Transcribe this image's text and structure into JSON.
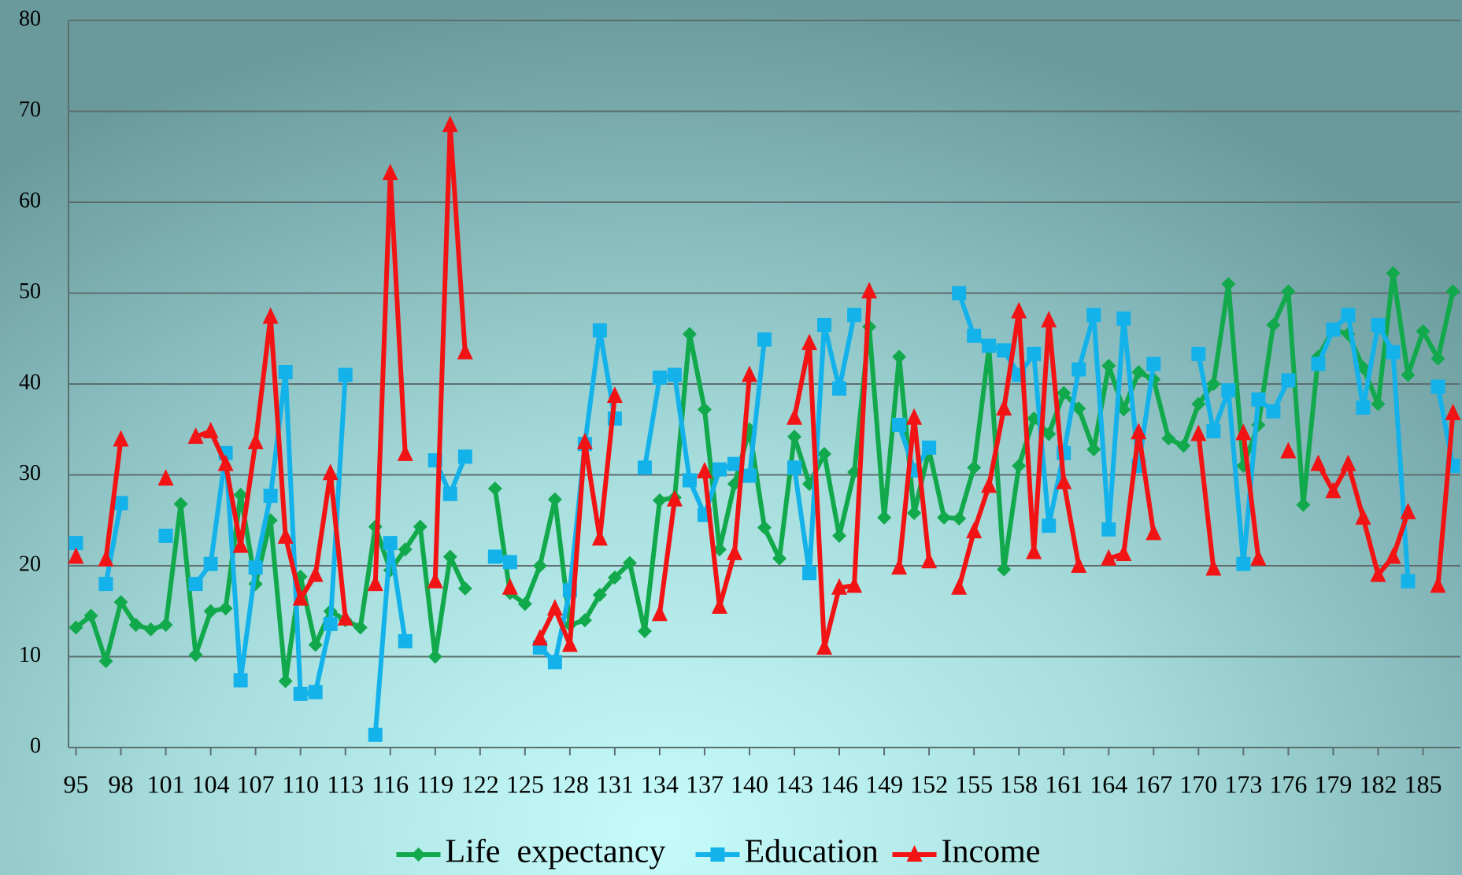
{
  "chart_data": {
    "type": "line",
    "x": [
      95,
      96,
      97,
      98,
      99,
      100,
      101,
      102,
      103,
      104,
      105,
      106,
      107,
      108,
      109,
      110,
      111,
      112,
      113,
      114,
      115,
      116,
      117,
      118,
      119,
      120,
      121,
      122,
      123,
      124,
      125,
      126,
      127,
      128,
      129,
      130,
      131,
      132,
      133,
      134,
      135,
      136,
      137,
      138,
      139,
      140,
      141,
      142,
      143,
      144,
      145,
      146,
      147,
      148,
      149,
      150,
      151,
      152,
      153,
      154,
      155,
      156,
      157,
      158,
      159,
      160,
      161,
      162,
      163,
      164,
      165,
      166,
      167,
      168,
      169,
      170,
      171,
      172,
      173,
      174,
      175,
      176,
      177,
      178,
      179,
      180,
      181,
      182,
      183,
      184,
      185,
      186,
      187
    ],
    "xlim": [
      94.5,
      187.5
    ],
    "xticks": [
      95,
      98,
      101,
      104,
      107,
      110,
      113,
      116,
      119,
      122,
      125,
      128,
      131,
      134,
      137,
      140,
      143,
      146,
      149,
      152,
      155,
      158,
      161,
      164,
      167,
      170,
      173,
      176,
      179,
      182,
      185
    ],
    "ylim": [
      0,
      80
    ],
    "yticks": [
      0,
      10,
      20,
      30,
      40,
      50,
      60,
      70,
      80
    ],
    "grid": true,
    "legend": "bottom",
    "series": [
      {
        "name": "Life  expectancy",
        "color": "#12a94c",
        "marker": "diamond",
        "values": [
          13.2,
          14.5,
          9.5,
          16,
          13.5,
          13,
          13.5,
          26.8,
          10.2,
          15,
          15.3,
          27.8,
          18,
          25,
          7.3,
          18.8,
          11.3,
          15,
          14,
          13.2,
          24.3,
          19.5,
          21.8,
          24.3,
          10,
          21,
          17.5,
          null,
          28.5,
          17,
          15.8,
          20,
          27.3,
          13.5,
          14,
          16.8,
          18.7,
          20.3,
          12.8,
          27.2,
          27.5,
          45.5,
          37.2,
          21.8,
          29,
          35,
          24.2,
          20.8,
          34.2,
          29,
          32.3,
          23.3,
          30.3,
          46.3,
          25.3,
          43,
          25.8,
          32.7,
          25.3,
          25.2,
          30.8,
          44,
          19.6,
          31,
          36.2,
          34.5,
          39,
          37.3,
          32.8,
          42,
          37.2,
          41.3,
          40.5,
          34,
          33.2,
          37.8,
          40,
          51,
          31,
          35.5,
          46.5,
          50.2,
          26.7,
          43,
          46,
          45.5,
          41.8,
          37.8,
          52.2,
          41,
          45.8,
          42.8,
          50.2
        ]
      },
      {
        "name": "Education",
        "color": "#14b2ea",
        "marker": "square",
        "values": [
          22.5,
          null,
          18,
          26.9,
          null,
          null,
          23.3,
          null,
          18,
          20.2,
          32.4,
          7.4,
          19.8,
          27.7,
          41.3,
          5.9,
          6.1,
          13.6,
          41,
          null,
          1.4,
          22.5,
          11.7,
          null,
          31.6,
          27.9,
          32,
          null,
          21,
          20.4,
          null,
          11,
          9.4,
          17.3,
          33.4,
          45.9,
          36.2,
          null,
          30.8,
          40.7,
          41,
          29.4,
          25.6,
          30.6,
          31.2,
          29.9,
          44.9,
          null,
          30.8,
          19.2,
          46.5,
          39.5,
          47.6,
          null,
          null,
          35.5,
          30.5,
          33,
          null,
          50,
          45.3,
          44.2,
          43.7,
          41,
          43.3,
          24.4,
          32.4,
          41.6,
          47.6,
          24,
          47.2,
          31,
          42.2,
          null,
          null,
          43.3,
          34.8,
          39.3,
          20.2,
          38.3,
          37,
          40.4,
          null,
          42.2,
          46,
          47.6,
          37.4,
          46.5,
          43.5,
          18.3,
          null,
          39.7,
          31
        ]
      },
      {
        "name": "Income",
        "color": "#f21414",
        "marker": "triangle",
        "values": [
          21,
          null,
          20.7,
          33.9,
          null,
          null,
          29.6,
          null,
          34.2,
          34.8,
          31.2,
          22.2,
          33.6,
          47.4,
          23.2,
          16.4,
          19,
          30.2,
          14.2,
          null,
          18,
          63.2,
          32.3,
          null,
          18.3,
          68.5,
          43.5,
          null,
          null,
          17.6,
          null,
          12,
          15.3,
          11.3,
          33.6,
          23,
          38.7,
          null,
          null,
          14.7,
          27.3,
          null,
          30.4,
          15.5,
          21.4,
          41,
          null,
          null,
          36.3,
          44.5,
          11,
          17.6,
          17.8,
          50.2,
          null,
          19.8,
          36.3,
          20.5,
          null,
          17.6,
          23.8,
          28.8,
          37.3,
          48,
          21.5,
          47,
          29.2,
          20,
          null,
          20.8,
          21.3,
          34.7,
          23.6,
          null,
          null,
          34.5,
          19.7,
          null,
          34.6,
          20.8,
          null,
          32.6,
          null,
          31.2,
          28.2,
          31.2,
          25.3,
          19,
          21,
          25.9,
          null,
          17.8,
          36.8
        ]
      }
    ]
  }
}
